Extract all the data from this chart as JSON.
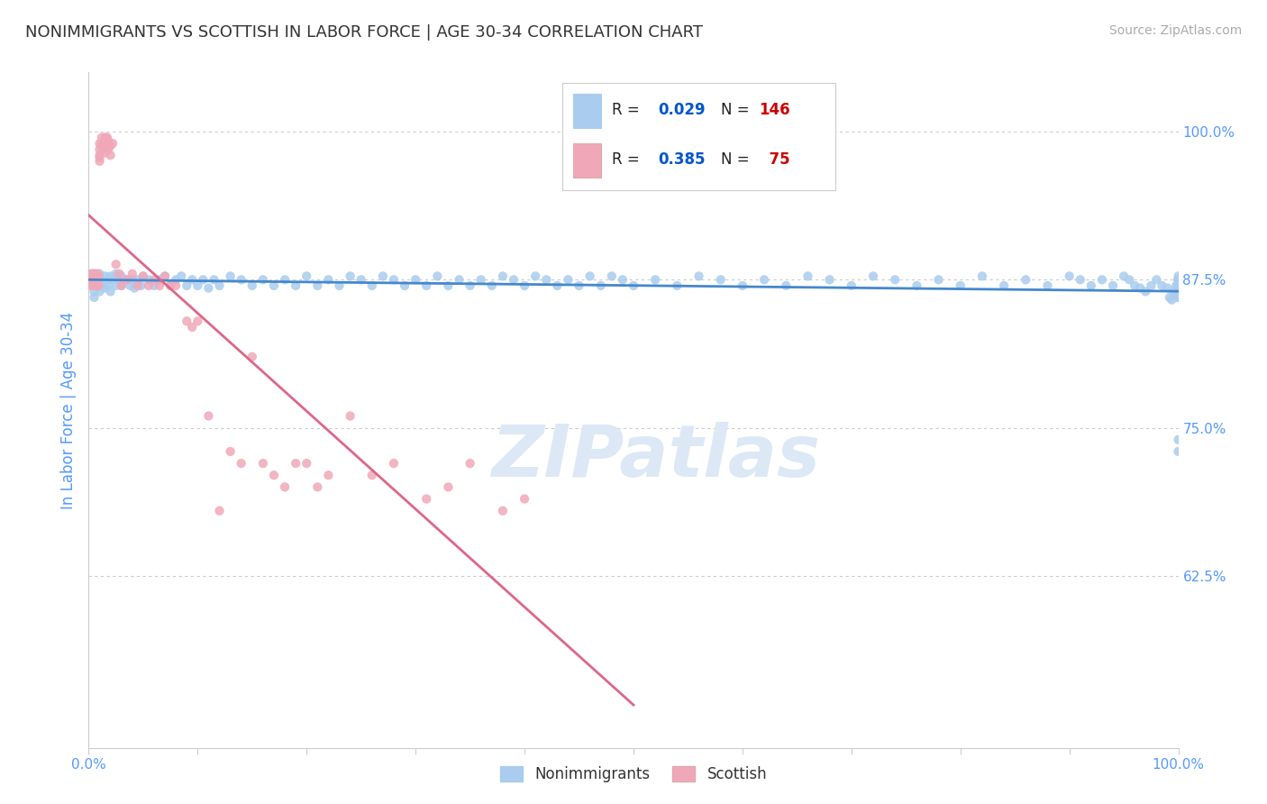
{
  "title": "NONIMMIGRANTS VS SCOTTISH IN LABOR FORCE | AGE 30-34 CORRELATION CHART",
  "source": "Source: ZipAtlas.com",
  "ylabel": "In Labor Force | Age 30-34",
  "xlim": [
    0.0,
    1.0
  ],
  "ylim": [
    0.48,
    1.05
  ],
  "yticks": [
    0.625,
    0.75,
    0.875,
    1.0
  ],
  "ytick_labels": [
    "62.5%",
    "75.0%",
    "87.5%",
    "100.0%"
  ],
  "nonimmigrant_color": "#aaccee",
  "scottish_color": "#f0a8b8",
  "nonimmigrant_line_color": "#4488cc",
  "scottish_line_color": "#dd6688",
  "R_nonimmigrant": 0.029,
  "N_nonimmigrant": 146,
  "R_scottish": 0.385,
  "N_scottish": 75,
  "background_color": "#ffffff",
  "tick_color": "#5599ff",
  "legend_R_color": "#0055cc",
  "legend_N_color": "#cc0000",
  "watermark_color": "#dce8f5",
  "ni_x": [
    0.005,
    0.005,
    0.005,
    0.005,
    0.005,
    0.008,
    0.008,
    0.008,
    0.01,
    0.01,
    0.01,
    0.012,
    0.012,
    0.015,
    0.015,
    0.018,
    0.018,
    0.02,
    0.02,
    0.022,
    0.025,
    0.025,
    0.028,
    0.03,
    0.03,
    0.035,
    0.038,
    0.04,
    0.042,
    0.045,
    0.048,
    0.05,
    0.055,
    0.06,
    0.065,
    0.07,
    0.075,
    0.08,
    0.085,
    0.09,
    0.095,
    0.1,
    0.105,
    0.11,
    0.115,
    0.12,
    0.13,
    0.14,
    0.15,
    0.16,
    0.17,
    0.18,
    0.19,
    0.2,
    0.21,
    0.22,
    0.23,
    0.24,
    0.25,
    0.26,
    0.27,
    0.28,
    0.29,
    0.3,
    0.31,
    0.32,
    0.33,
    0.34,
    0.35,
    0.36,
    0.37,
    0.38,
    0.39,
    0.4,
    0.41,
    0.42,
    0.43,
    0.44,
    0.45,
    0.46,
    0.47,
    0.48,
    0.49,
    0.5,
    0.52,
    0.54,
    0.56,
    0.58,
    0.6,
    0.62,
    0.64,
    0.66,
    0.68,
    0.7,
    0.72,
    0.74,
    0.76,
    0.78,
    0.8,
    0.82,
    0.84,
    0.86,
    0.88,
    0.9,
    0.91,
    0.92,
    0.93,
    0.94,
    0.95,
    0.955,
    0.96,
    0.965,
    0.97,
    0.975,
    0.98,
    0.985,
    0.99,
    0.992,
    0.994,
    0.996,
    0.998,
    1.0,
    1.0,
    1.0,
    1.0,
    1.0,
    1.0,
    1.0,
    1.0,
    1.0,
    1.0,
    1.0,
    1.0,
    1.0,
    1.0,
    1.0,
    1.0,
    1.0,
    1.0,
    1.0,
    1.0,
    1.0,
    1.0,
    1.0,
    1.0,
    1.0
  ],
  "ni_y": [
    0.88,
    0.875,
    0.86,
    0.87,
    0.865,
    0.88,
    0.875,
    0.87,
    0.875,
    0.88,
    0.865,
    0.875,
    0.87,
    0.878,
    0.868,
    0.875,
    0.87,
    0.878,
    0.865,
    0.875,
    0.88,
    0.87,
    0.875,
    0.87,
    0.878,
    0.875,
    0.87,
    0.875,
    0.868,
    0.875,
    0.87,
    0.878,
    0.875,
    0.87,
    0.875,
    0.878,
    0.87,
    0.875,
    0.878,
    0.87,
    0.875,
    0.87,
    0.875,
    0.868,
    0.875,
    0.87,
    0.878,
    0.875,
    0.87,
    0.875,
    0.87,
    0.875,
    0.87,
    0.878,
    0.87,
    0.875,
    0.87,
    0.878,
    0.875,
    0.87,
    0.878,
    0.875,
    0.87,
    0.875,
    0.87,
    0.878,
    0.87,
    0.875,
    0.87,
    0.875,
    0.87,
    0.878,
    0.875,
    0.87,
    0.878,
    0.875,
    0.87,
    0.875,
    0.87,
    0.878,
    0.87,
    0.878,
    0.875,
    0.87,
    0.875,
    0.87,
    0.878,
    0.875,
    0.87,
    0.875,
    0.87,
    0.878,
    0.875,
    0.87,
    0.878,
    0.875,
    0.87,
    0.875,
    0.87,
    0.878,
    0.87,
    0.875,
    0.87,
    0.878,
    0.875,
    0.87,
    0.875,
    0.87,
    0.878,
    0.875,
    0.87,
    0.868,
    0.865,
    0.87,
    0.875,
    0.87,
    0.868,
    0.86,
    0.858,
    0.865,
    0.87,
    0.87,
    0.875,
    0.868,
    0.86,
    0.87,
    0.875,
    0.868,
    0.865,
    0.878,
    0.74,
    0.87,
    0.86,
    0.868,
    0.87,
    0.875,
    0.868,
    0.862,
    0.87,
    0.875,
    0.868,
    0.865,
    0.87,
    0.875,
    0.73,
    0.868
  ],
  "sc_x": [
    0.002,
    0.002,
    0.002,
    0.003,
    0.003,
    0.004,
    0.004,
    0.005,
    0.005,
    0.006,
    0.006,
    0.007,
    0.007,
    0.008,
    0.008,
    0.009,
    0.009,
    0.01,
    0.01,
    0.01,
    0.01,
    0.01,
    0.012,
    0.012,
    0.013,
    0.014,
    0.014,
    0.015,
    0.015,
    0.015,
    0.016,
    0.016,
    0.017,
    0.017,
    0.018,
    0.018,
    0.02,
    0.02,
    0.022,
    0.025,
    0.028,
    0.03,
    0.035,
    0.04,
    0.045,
    0.05,
    0.055,
    0.06,
    0.065,
    0.07,
    0.075,
    0.08,
    0.09,
    0.095,
    0.1,
    0.11,
    0.12,
    0.13,
    0.14,
    0.15,
    0.16,
    0.17,
    0.18,
    0.19,
    0.2,
    0.21,
    0.22,
    0.24,
    0.26,
    0.28,
    0.31,
    0.33,
    0.35,
    0.38,
    0.4
  ],
  "sc_y": [
    0.88,
    0.875,
    0.87,
    0.88,
    0.875,
    0.88,
    0.872,
    0.878,
    0.87,
    0.88,
    0.872,
    0.878,
    0.87,
    0.88,
    0.872,
    0.878,
    0.87,
    0.99,
    0.985,
    0.98,
    0.978,
    0.975,
    0.995,
    0.99,
    0.985,
    0.99,
    0.985,
    0.995,
    0.99,
    0.982,
    0.995,
    0.988,
    0.995,
    0.988,
    0.992,
    0.985,
    0.988,
    0.98,
    0.99,
    0.888,
    0.88,
    0.87,
    0.875,
    0.88,
    0.87,
    0.878,
    0.87,
    0.875,
    0.87,
    0.878,
    0.87,
    0.87,
    0.84,
    0.835,
    0.84,
    0.76,
    0.68,
    0.73,
    0.72,
    0.81,
    0.72,
    0.71,
    0.7,
    0.72,
    0.72,
    0.7,
    0.71,
    0.76,
    0.71,
    0.72,
    0.69,
    0.7,
    0.72,
    0.68,
    0.69
  ]
}
